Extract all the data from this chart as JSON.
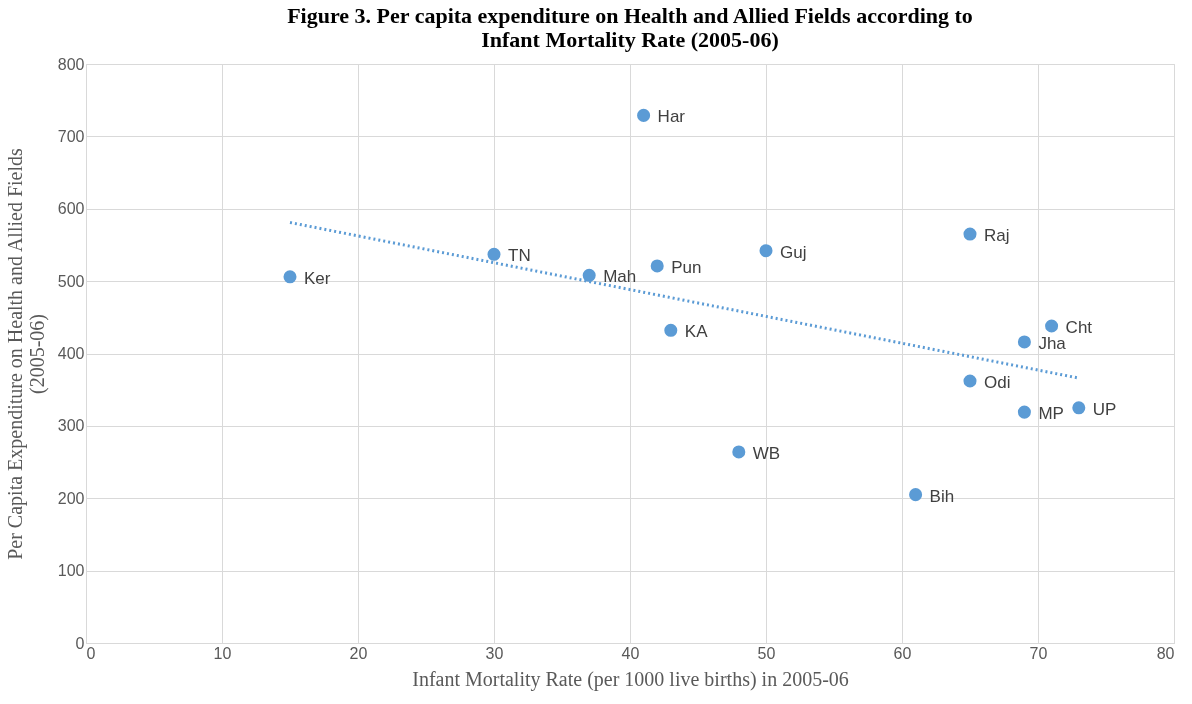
{
  "chart_data": {
    "type": "scatter",
    "title": "Figure 3. Per capita expenditure on Health and Allied Fields according to Infant Mortality Rate (2005-06)",
    "xlabel": "Infant Mortality Rate (per 1000 live births) in 2005-06",
    "ylabel": "Per Capita Expenditure on Health and Allied Fields (2005-06)",
    "x": [
      15,
      30,
      37,
      41,
      42,
      43,
      48,
      50,
      61,
      65,
      65,
      69,
      69,
      71,
      73
    ],
    "series": [
      {
        "color": "#5b9bd5",
        "marker": "circle",
        "values": [
          506,
          537,
          508,
          729,
          521,
          432,
          264,
          542,
          205,
          565,
          362,
          416,
          319,
          438,
          325
        ]
      },
      {
        "type": "line",
        "color": "#5b9bd5",
        "line_style": "dotted",
        "x": [
          15,
          73
        ],
        "values": [
          581,
          366
        ]
      }
    ],
    "annotations": [
      {
        "text": "Ker",
        "x": 15,
        "y": 506
      },
      {
        "text": "TN",
        "x": 30,
        "y": 537
      },
      {
        "text": "Mah",
        "x": 37,
        "y": 508
      },
      {
        "text": "Har",
        "x": 41,
        "y": 729
      },
      {
        "text": "Pun",
        "x": 42,
        "y": 521
      },
      {
        "text": "KA",
        "x": 43,
        "y": 432
      },
      {
        "text": "WB",
        "x": 48,
        "y": 264
      },
      {
        "text": "Guj",
        "x": 50,
        "y": 542
      },
      {
        "text": "Bih",
        "x": 61,
        "y": 205
      },
      {
        "text": "Raj",
        "x": 65,
        "y": 565
      },
      {
        "text": "Odi",
        "x": 65,
        "y": 362
      },
      {
        "text": "Jha",
        "x": 69,
        "y": 416
      },
      {
        "text": "MP",
        "x": 69,
        "y": 319
      },
      {
        "text": "Cht",
        "x": 71,
        "y": 438
      },
      {
        "text": "UP",
        "x": 73,
        "y": 325
      }
    ],
    "xlim": [
      0,
      80
    ],
    "xticks": [
      0,
      10,
      20,
      30,
      40,
      50,
      60,
      70,
      80
    ],
    "ylim": [
      0,
      800
    ],
    "yticks": [
      0,
      100,
      200,
      300,
      400,
      500,
      600,
      700,
      800
    ],
    "grid": true
  }
}
